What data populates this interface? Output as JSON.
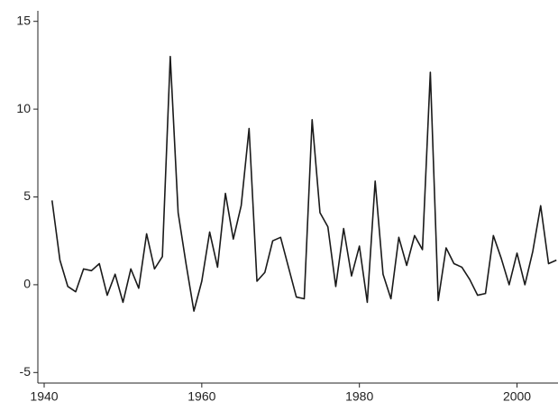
{
  "chart_data": {
    "type": "line",
    "x": [
      1941,
      1942,
      1943,
      1944,
      1945,
      1946,
      1947,
      1948,
      1949,
      1950,
      1951,
      1952,
      1953,
      1954,
      1955,
      1956,
      1957,
      1958,
      1959,
      1960,
      1961,
      1962,
      1963,
      1964,
      1965,
      1966,
      1967,
      1968,
      1969,
      1970,
      1971,
      1972,
      1973,
      1974,
      1975,
      1976,
      1977,
      1978,
      1979,
      1980,
      1981,
      1982,
      1983,
      1984,
      1985,
      1986,
      1987,
      1988,
      1989,
      1990,
      1991,
      1992,
      1993,
      1994,
      1995,
      1996,
      1997,
      1998,
      1999,
      2000,
      2001,
      2002,
      2003,
      2004,
      2005
    ],
    "series": [
      {
        "color": "#1a1a1a",
        "values": [
          4.8,
          1.4,
          -0.1,
          -0.4,
          0.9,
          0.8,
          1.2,
          -0.6,
          0.6,
          -1.0,
          0.9,
          -0.2,
          2.9,
          0.9,
          1.6,
          13.0,
          4.1,
          1.2,
          -1.5,
          0.2,
          3.0,
          1.0,
          5.2,
          2.6,
          4.5,
          8.9,
          0.2,
          0.7,
          2.5,
          2.7,
          1.0,
          -0.7,
          -0.8,
          9.4,
          4.1,
          3.3,
          -0.1,
          3.2,
          0.5,
          2.2,
          -1.0,
          5.9,
          0.6,
          -0.8,
          2.7,
          1.1,
          2.8,
          2.0,
          12.1,
          -0.9,
          2.1,
          1.2,
          1.0,
          0.3,
          -0.6,
          -0.5,
          2.8,
          1.5,
          0.0,
          1.8,
          0.0,
          1.9,
          4.5,
          1.2,
          1.4
        ]
      }
    ],
    "xlim": [
      1939.2,
      2005.2
    ],
    "xticks": [
      1940,
      1960,
      1980,
      2000
    ],
    "ylim": [
      -5.6,
      15.6
    ],
    "yticks": [
      -5,
      0,
      5,
      10,
      15
    ]
  }
}
